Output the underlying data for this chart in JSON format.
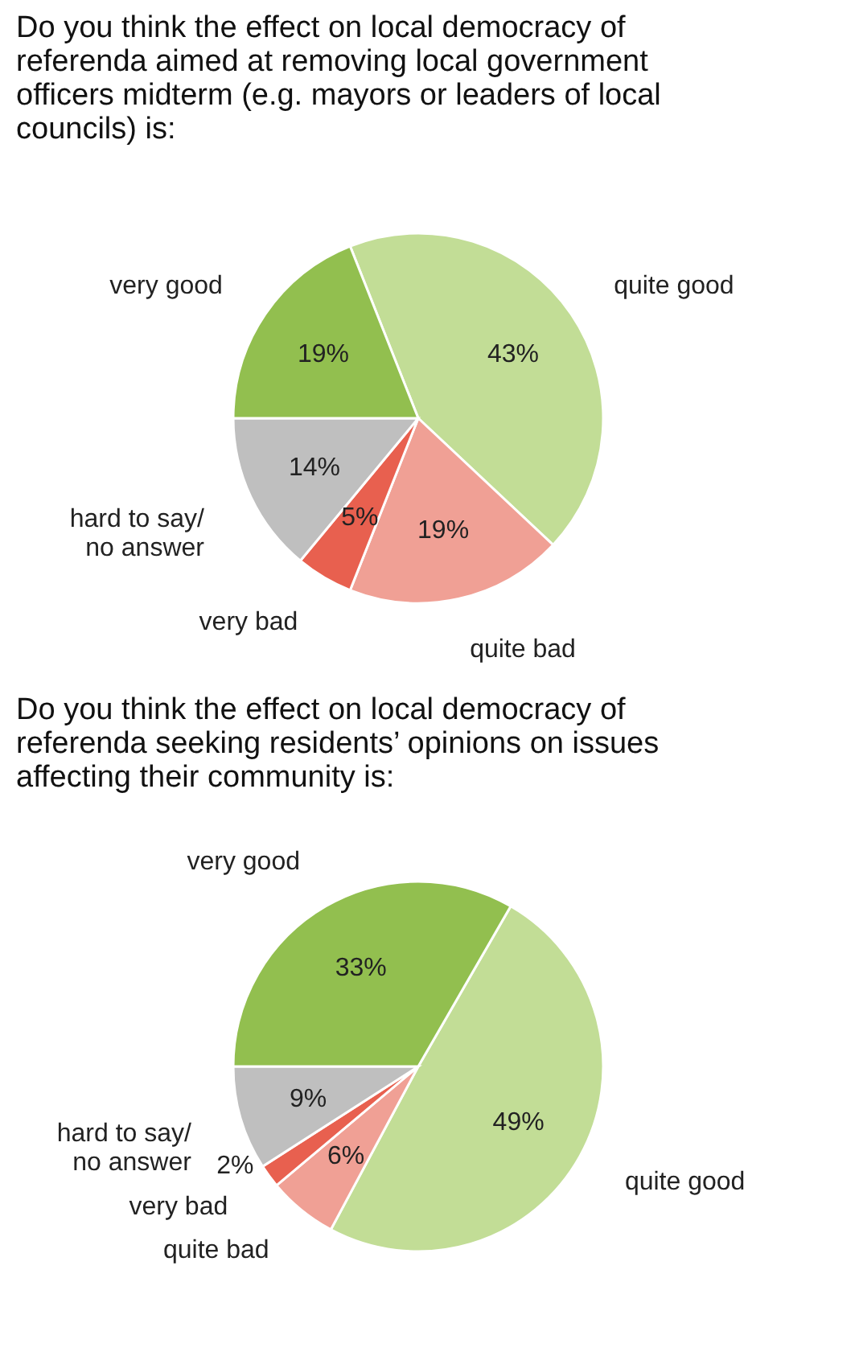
{
  "chart_data": [
    {
      "type": "pie",
      "title": "Do you think the effect on local democracy of referenda aimed at removing local government officers midterm (e.g. mayors or leaders of local councils) is:",
      "categories": [
        "quite good",
        "quite bad",
        "very bad",
        "hard to say/\nno answer",
        "very good"
      ],
      "values": [
        43,
        19,
        5,
        14,
        19
      ],
      "colors": [
        "#c2dd96",
        "#f0a095",
        "#e8604f",
        "#bfbfbf",
        "#92bf4f"
      ],
      "value_labels": [
        "43%",
        "19%",
        "5%",
        "14%",
        "19%"
      ]
    },
    {
      "type": "pie",
      "title": "Do you think the effect on local democracy of referenda seeking residents’ opinions on issues affecting their community is:",
      "categories": [
        "quite good",
        "quite bad",
        "very bad",
        "hard to say/\nno answer",
        "very good"
      ],
      "values": [
        49,
        6,
        2,
        9,
        33
      ],
      "colors": [
        "#c2dd96",
        "#f0a095",
        "#e8604f",
        "#bfbfbf",
        "#92bf4f"
      ],
      "value_labels": [
        "49%",
        "6%",
        "2%",
        "9%",
        "33%"
      ]
    }
  ]
}
